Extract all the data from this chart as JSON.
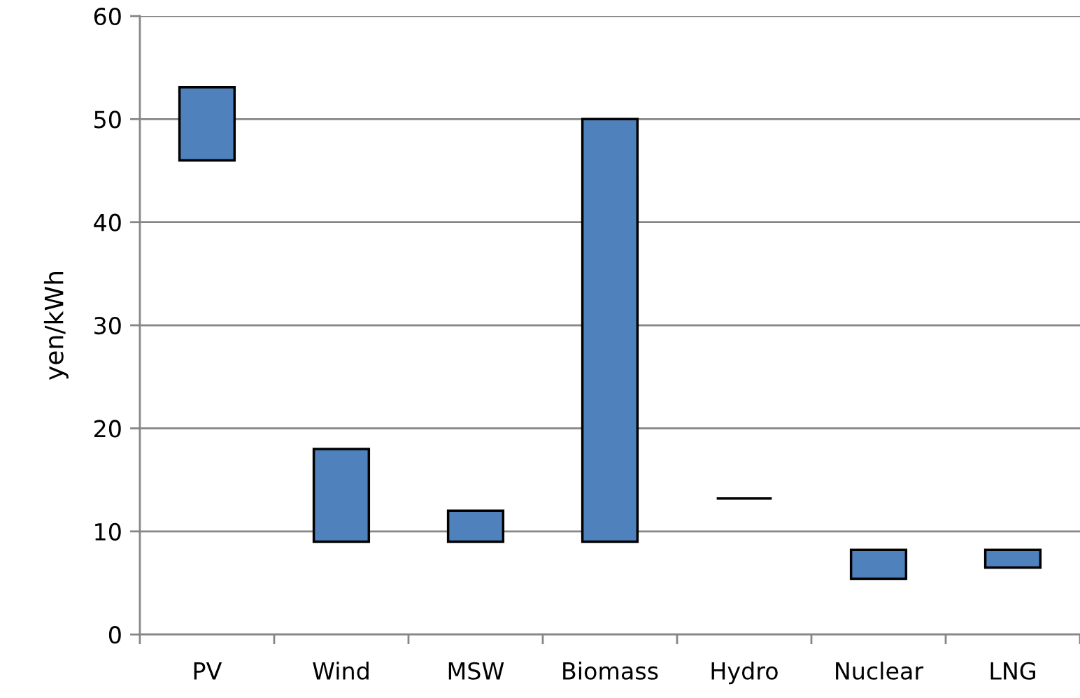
{
  "chart_data": {
    "type": "bar",
    "ylabel": "yen/kWh",
    "categories": [
      "PV",
      "Wind",
      "MSW",
      "Biomass",
      "Hydro",
      "Nuclear",
      "LNG"
    ],
    "base": [
      46,
      9,
      9,
      9,
      13.2,
      5.4,
      6.5
    ],
    "values": [
      7.1,
      9,
      3,
      41,
      0,
      2.8,
      1.7
    ],
    "colors": [
      "#4f81bd",
      "#4f81bd",
      "#4f81bd",
      "#4f81bd",
      "#000000",
      "#4f81bd",
      "#4f81bd"
    ],
    "ylim": [
      0,
      60
    ],
    "yticks": [
      0,
      10,
      20,
      30,
      40,
      50,
      60
    ],
    "grid": "y",
    "legend": false
  }
}
